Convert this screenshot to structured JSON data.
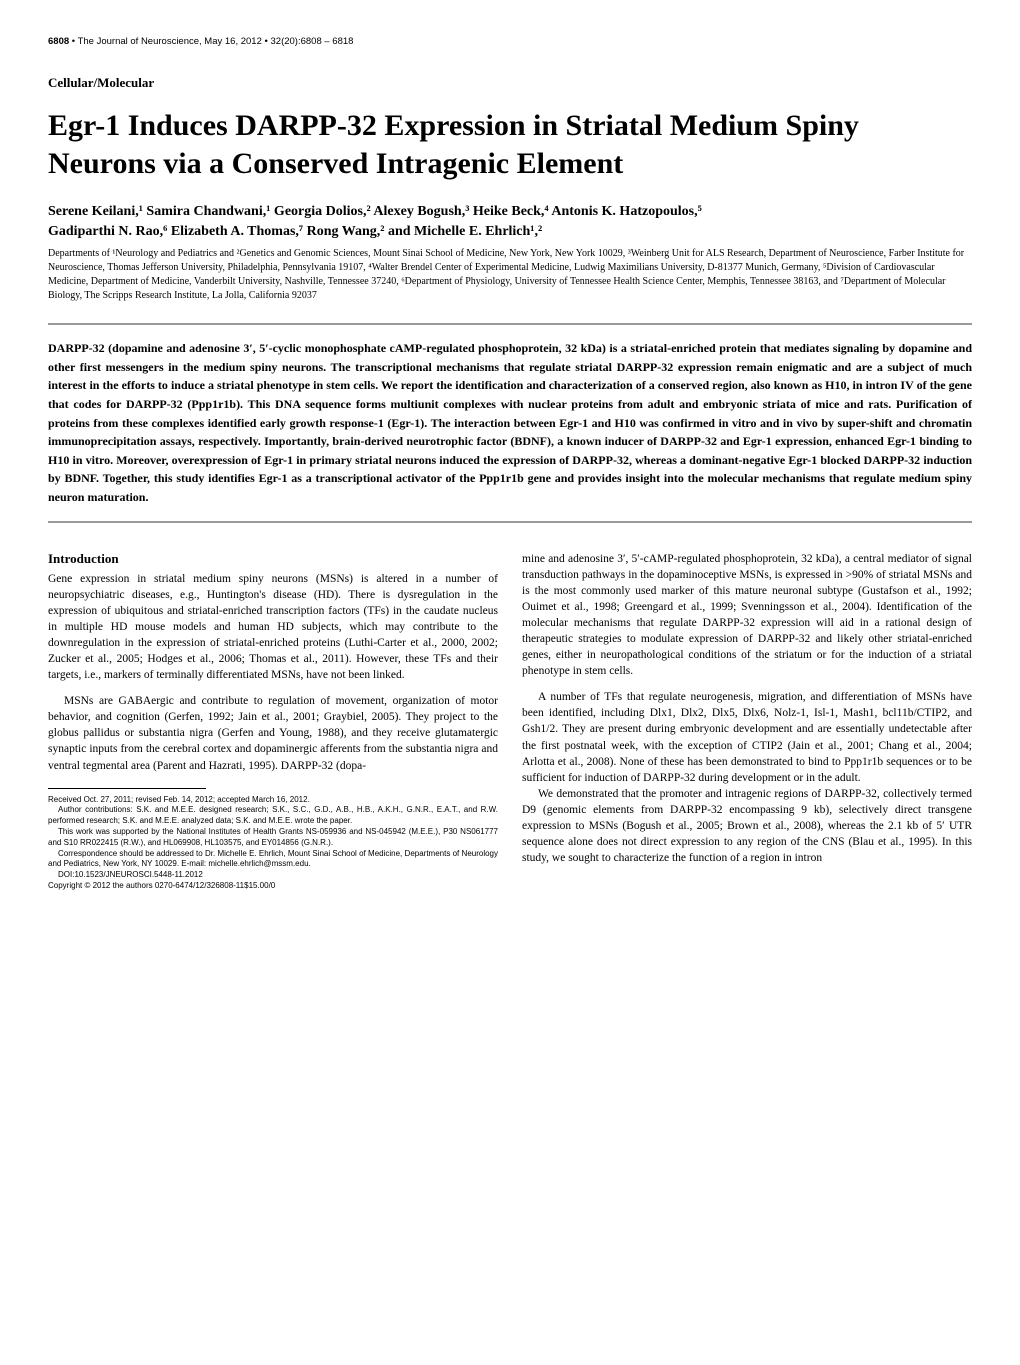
{
  "header": {
    "page_number": "6808",
    "journal": "The Journal of Neuroscience, May 16, 2012",
    "volume": "32(20):6808 – 6818"
  },
  "section_label": "Cellular/Molecular",
  "title": "Egr-1 Induces DARPP-32 Expression in Striatal Medium Spiny Neurons via a Conserved Intragenic Element",
  "authors_line1": "Serene Keilani,¹ Samira Chandwani,¹ Georgia Dolios,² Alexey Bogush,³ Heike Beck,⁴ Antonis K. Hatzopoulos,⁵",
  "authors_line2": "Gadiparthi N. Rao,⁶ Elizabeth A. Thomas,⁷ Rong Wang,² and Michelle E. Ehrlich¹,²",
  "affiliations": "Departments of ¹Neurology and Pediatrics and ²Genetics and Genomic Sciences, Mount Sinai School of Medicine, New York, New York 10029, ³Weinberg Unit for ALS Research, Department of Neuroscience, Farber Institute for Neuroscience, Thomas Jefferson University, Philadelphia, Pennsylvania 19107, ⁴Walter Brendel Center of Experimental Medicine, Ludwig Maximilians University, D-81377 Munich, Germany, ⁵Division of Cardiovascular Medicine, Department of Medicine, Vanderbilt University, Nashville, Tennessee 37240, ⁶Department of Physiology, University of Tennessee Health Science Center, Memphis, Tennessee 38163, and ⁷Department of Molecular Biology, The Scripps Research Institute, La Jolla, California 92037",
  "abstract": "DARPP-32 (dopamine and adenosine 3′, 5′-cyclic monophosphate cAMP-regulated phosphoprotein, 32 kDa) is a striatal-enriched protein that mediates signaling by dopamine and other first messengers in the medium spiny neurons. The transcriptional mechanisms that regulate striatal DARPP-32 expression remain enigmatic and are a subject of much interest in the efforts to induce a striatal phenotype in stem cells. We report the identification and characterization of a conserved region, also known as H10, in intron IV of the gene that codes for DARPP-32 (Ppp1r1b). This DNA sequence forms multiunit complexes with nuclear proteins from adult and embryonic striata of mice and rats. Purification of proteins from these complexes identified early growth response-1 (Egr-1). The interaction between Egr-1 and H10 was confirmed in vitro and in vivo by super-shift and chromatin immunoprecipitation assays, respectively. Importantly, brain-derived neurotrophic factor (BDNF), a known inducer of DARPP-32 and Egr-1 expression, enhanced Egr-1 binding to H10 in vitro. Moreover, overexpression of Egr-1 in primary striatal neurons induced the expression of DARPP-32, whereas a dominant-negative Egr-1 blocked DARPP-32 induction by BDNF. Together, this study identifies Egr-1 as a transcriptional activator of the Ppp1r1b gene and provides insight into the molecular mechanisms that regulate medium spiny neuron maturation.",
  "intro_heading": "Introduction",
  "left_col": {
    "p1": "Gene expression in striatal medium spiny neurons (MSNs) is altered in a number of neuropsychiatric diseases, e.g., Huntington's disease (HD). There is dysregulation in the expression of ubiquitous and striatal-enriched transcription factors (TFs) in the caudate nucleus in multiple HD mouse models and human HD subjects, which may contribute to the downregulation in the expression of striatal-enriched proteins (Luthi-Carter et al., 2000, 2002; Zucker et al., 2005; Hodges et al., 2006; Thomas et al., 2011). However, these TFs and their targets, i.e., markers of terminally differentiated MSNs, have not been linked.",
    "p2": "MSNs are GABAergic and contribute to regulation of movement, organization of motor behavior, and cognition (Gerfen, 1992; Jain et al., 2001; Graybiel, 2005). They project to the globus pallidus or substantia nigra (Gerfen and Young, 1988), and they receive glutamatergic synaptic inputs from the cerebral cortex and dopaminergic afferents from the substantia nigra and ventral tegmental area (Parent and Hazrati, 1995). DARPP-32 (dopa-"
  },
  "right_col": {
    "p1": "mine and adenosine 3′, 5′-cAMP-regulated phosphoprotein, 32 kDa), a central mediator of signal transduction pathways in the dopaminoceptive MSNs, is expressed in >90% of striatal MSNs and is the most commonly used marker of this mature neuronal subtype (Gustafson et al., 1992; Ouimet et al., 1998; Greengard et al., 1999; Svenningsson et al., 2004). Identification of the molecular mechanisms that regulate DARPP-32 expression will aid in a rational design of therapeutic strategies to modulate expression of DARPP-32 and likely other striatal-enriched genes, either in neuropathological conditions of the striatum or for the induction of a striatal phenotype in stem cells.",
    "p2": "A number of TFs that regulate neurogenesis, migration, and differentiation of MSNs have been identified, including Dlx1, Dlx2, Dlx5, Dlx6, Nolz-1, Isl-1, Mash1, bcl11b/CTIP2, and Gsh1/2. They are present during embryonic development and are essentially undetectable after the first postnatal week, with the exception of CTIP2 (Jain et al., 2001; Chang et al., 2004; Arlotta et al., 2008). None of these has been demonstrated to bind to Ppp1r1b sequences or to be sufficient for induction of DARPP-32 during development or in the adult.",
    "p3": "We demonstrated that the promoter and intragenic regions of DARPP-32, collectively termed D9 (genomic elements from DARPP-32 encompassing 9 kb), selectively direct transgene expression to MSNs (Bogush et al., 2005; Brown et al., 2008), whereas the 2.1 kb of 5′ UTR sequence alone does not direct expression to any region of the CNS (Blau et al., 1995). In this study, we sought to characterize the function of a region in intron"
  },
  "footnotes": {
    "received": "Received Oct. 27, 2011; revised Feb. 14, 2012; accepted March 16, 2012.",
    "author_contributions": "Author contributions: S.K. and M.E.E. designed research; S.K., S.C., G.D., A.B., H.B., A.K.H., G.N.R., E.A.T., and R.W. performed research; S.K. and M.E.E. analyzed data; S.K. and M.E.E. wrote the paper.",
    "funding": "This work was supported by the National Institutes of Health Grants NS-059936 and NS-045942 (M.E.E.), P30 NS061777 and S10 RR022415 (R.W.), and HL069908, HL103575, and EY014856 (G.N.R.).",
    "correspondence": "Correspondence should be addressed to Dr. Michelle E. Ehrlich, Mount Sinai School of Medicine, Departments of Neurology and Pediatrics, New York, NY 10029. E-mail: michelle.ehrlich@mssm.edu.",
    "doi": "DOI:10.1523/JNEUROSCI.5448-11.2012",
    "copyright": "Copyright © 2012 the authors   0270-6474/12/326808-11$15.00/0"
  },
  "style": {
    "body_color": "#000000",
    "background_color": "#ffffff",
    "rule_color": "#999999",
    "title_fontsize": 30,
    "authors_fontsize": 14,
    "affiliations_fontsize": 10,
    "abstract_fontsize": 12,
    "body_fontsize": 11.5,
    "footnote_fontsize": 8,
    "header_fontsize": 9.5
  }
}
